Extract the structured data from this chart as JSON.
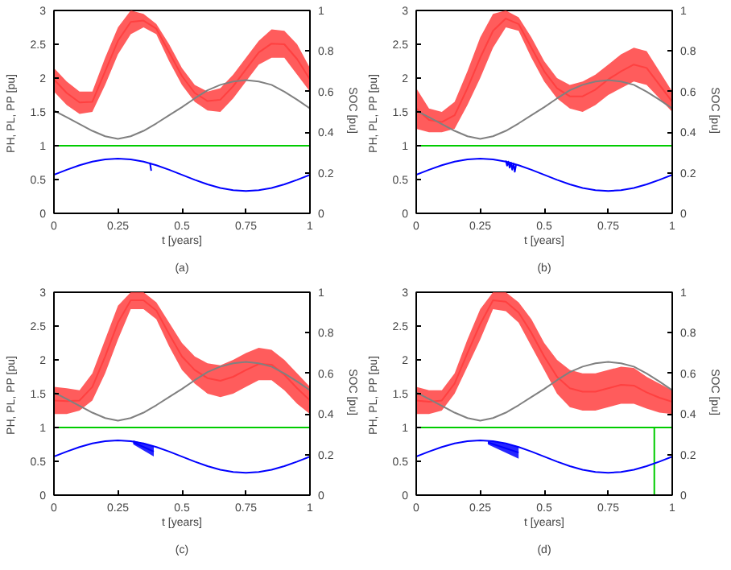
{
  "chart_data": [
    {
      "type": "line",
      "xlabel": "t [years]",
      "ylabel": "PH, PL, PP  [pu]",
      "y2label": "SOC  [pu]",
      "annotations": [
        "(a)"
      ],
      "xlim": [
        0,
        1
      ],
      "xticks": [
        0,
        0.25,
        0.5,
        0.75,
        1
      ],
      "ylim": [
        0,
        3
      ],
      "yticks": [
        0,
        0.5,
        1,
        1.5,
        2,
        2.5,
        3
      ],
      "y2lim": [
        0,
        1
      ],
      "y2ticks": [
        0,
        0.2,
        0.4,
        0.6,
        0.8,
        1
      ],
      "grid": false,
      "x": [
        0,
        0.05,
        0.1,
        0.15,
        0.2,
        0.25,
        0.3,
        0.35,
        0.4,
        0.45,
        0.5,
        0.55,
        0.6,
        0.65,
        0.7,
        0.75,
        0.8,
        0.85,
        0.9,
        0.95,
        1
      ],
      "series": [
        {
          "color": "#ff4040",
          "values": [
            1.98,
            1.78,
            1.64,
            1.65,
            2.1,
            2.55,
            2.83,
            2.85,
            2.73,
            2.38,
            2.03,
            1.78,
            1.66,
            1.68,
            1.88,
            2.13,
            2.38,
            2.51,
            2.5,
            2.28,
            1.98
          ],
          "lower": [
            1.8,
            1.6,
            1.47,
            1.5,
            1.9,
            2.35,
            2.65,
            2.75,
            2.65,
            2.25,
            1.9,
            1.65,
            1.52,
            1.5,
            1.7,
            1.95,
            2.2,
            2.3,
            2.3,
            2.05,
            1.8
          ],
          "upper": [
            2.15,
            1.95,
            1.8,
            1.8,
            2.3,
            2.75,
            3.0,
            2.95,
            2.8,
            2.5,
            2.15,
            1.9,
            1.8,
            1.85,
            2.05,
            2.3,
            2.55,
            2.72,
            2.7,
            2.5,
            2.15
          ]
        },
        {
          "color": "#808080",
          "values": [
            1.52,
            1.42,
            1.32,
            1.22,
            1.14,
            1.1,
            1.14,
            1.22,
            1.33,
            1.45,
            1.57,
            1.7,
            1.82,
            1.9,
            1.95,
            1.97,
            1.95,
            1.9,
            1.8,
            1.68,
            1.55
          ]
        },
        {
          "color": "#00cc00",
          "values": [
            1,
            1,
            1,
            1,
            1,
            1,
            1,
            1,
            1,
            1,
            1,
            1,
            1,
            1,
            1,
            1,
            1,
            1,
            1,
            1,
            1
          ]
        },
        {
          "color": "#0000ff",
          "axis": "y2",
          "values": [
            0.19,
            0.215,
            0.237,
            0.255,
            0.266,
            0.27,
            0.266,
            0.255,
            0.237,
            0.215,
            0.19,
            0.165,
            0.143,
            0.125,
            0.114,
            0.11,
            0.114,
            0.125,
            0.143,
            0.165,
            0.19
          ]
        },
        {
          "color": "#0000ff",
          "axis": "y2",
          "x": [
            0.375,
            0.38
          ],
          "values": [
            0.25,
            0.21
          ]
        }
      ]
    },
    {
      "type": "line",
      "xlabel": "t [years]",
      "ylabel": "PH, PL, PP  [pu]",
      "y2label": "SOC  [pu]",
      "annotations": [
        "(b)"
      ],
      "xlim": [
        0,
        1
      ],
      "xticks": [
        0,
        0.25,
        0.5,
        0.75,
        1
      ],
      "ylim": [
        0,
        3
      ],
      "yticks": [
        0,
        0.5,
        1,
        1.5,
        2,
        2.5,
        3
      ],
      "y2lim": [
        0,
        1
      ],
      "y2ticks": [
        0,
        0.2,
        0.4,
        0.6,
        0.8,
        1
      ],
      "grid": false,
      "x": [
        0,
        0.05,
        0.1,
        0.15,
        0.2,
        0.25,
        0.3,
        0.35,
        0.4,
        0.45,
        0.5,
        0.55,
        0.6,
        0.65,
        0.7,
        0.75,
        0.8,
        0.85,
        0.9,
        0.95,
        1
      ],
      "series": [
        {
          "color": "#ff4040",
          "values": [
            1.55,
            1.38,
            1.35,
            1.45,
            1.85,
            2.3,
            2.7,
            2.88,
            2.8,
            2.45,
            2.1,
            1.85,
            1.73,
            1.73,
            1.83,
            1.98,
            2.1,
            2.2,
            2.15,
            1.9,
            1.65
          ],
          "lower": [
            1.25,
            1.2,
            1.2,
            1.25,
            1.6,
            2.0,
            2.45,
            2.75,
            2.7,
            2.3,
            1.95,
            1.7,
            1.55,
            1.5,
            1.6,
            1.75,
            1.85,
            1.95,
            1.9,
            1.7,
            1.5
          ],
          "upper": [
            1.85,
            1.55,
            1.5,
            1.65,
            2.1,
            2.6,
            2.95,
            3.0,
            2.9,
            2.6,
            2.25,
            2.0,
            1.9,
            1.95,
            2.05,
            2.2,
            2.35,
            2.45,
            2.4,
            2.1,
            1.8
          ]
        },
        {
          "color": "#808080",
          "values": [
            1.52,
            1.42,
            1.32,
            1.22,
            1.14,
            1.1,
            1.14,
            1.22,
            1.33,
            1.45,
            1.57,
            1.7,
            1.82,
            1.9,
            1.95,
            1.97,
            1.95,
            1.9,
            1.8,
            1.68,
            1.55
          ]
        },
        {
          "color": "#00cc00",
          "values": [
            1,
            1,
            1,
            1,
            1,
            1,
            1,
            1,
            1,
            1,
            1,
            1,
            1,
            1,
            1,
            1,
            1,
            1,
            1,
            1,
            1
          ]
        },
        {
          "color": "#0000ff",
          "axis": "y2",
          "values": [
            0.19,
            0.215,
            0.237,
            0.255,
            0.266,
            0.27,
            0.266,
            0.255,
            0.237,
            0.215,
            0.19,
            0.165,
            0.143,
            0.125,
            0.114,
            0.11,
            0.114,
            0.125,
            0.143,
            0.165,
            0.19
          ]
        },
        {
          "color": "#0000ff",
          "axis": "y2",
          "x": [
            0.35,
            0.355,
            0.36,
            0.365,
            0.37,
            0.375,
            0.38,
            0.385,
            0.39
          ],
          "values": [
            0.26,
            0.235,
            0.255,
            0.225,
            0.25,
            0.215,
            0.245,
            0.205,
            0.24
          ]
        }
      ]
    },
    {
      "type": "line",
      "xlabel": "t [years]",
      "ylabel": "PH, PL, PP  [pu]",
      "y2label": "SOC  [pu]",
      "annotations": [
        "(c)"
      ],
      "xlim": [
        0,
        1
      ],
      "xticks": [
        0,
        0.25,
        0.5,
        0.75,
        1
      ],
      "ylim": [
        0,
        3
      ],
      "yticks": [
        0,
        0.5,
        1,
        1.5,
        2,
        2.5,
        3
      ],
      "y2lim": [
        0,
        1
      ],
      "y2ticks": [
        0,
        0.2,
        0.4,
        0.6,
        0.8,
        1
      ],
      "grid": false,
      "x": [
        0,
        0.05,
        0.1,
        0.15,
        0.2,
        0.25,
        0.3,
        0.35,
        0.4,
        0.45,
        0.5,
        0.55,
        0.6,
        0.65,
        0.7,
        0.75,
        0.8,
        0.85,
        0.9,
        0.95,
        1
      ],
      "series": [
        {
          "color": "#ff4040",
          "values": [
            1.4,
            1.39,
            1.4,
            1.6,
            2.05,
            2.55,
            2.88,
            2.88,
            2.73,
            2.38,
            2.05,
            1.85,
            1.73,
            1.69,
            1.75,
            1.85,
            1.94,
            1.93,
            1.78,
            1.58,
            1.4
          ],
          "lower": [
            1.2,
            1.2,
            1.25,
            1.4,
            1.8,
            2.3,
            2.75,
            2.75,
            2.6,
            2.2,
            1.85,
            1.65,
            1.5,
            1.45,
            1.5,
            1.6,
            1.7,
            1.7,
            1.55,
            1.35,
            1.2
          ],
          "upper": [
            1.6,
            1.58,
            1.55,
            1.8,
            2.3,
            2.8,
            3.0,
            3.0,
            2.85,
            2.55,
            2.25,
            2.05,
            1.95,
            1.92,
            2.0,
            2.1,
            2.18,
            2.15,
            2.0,
            1.8,
            1.6
          ]
        },
        {
          "color": "#808080",
          "values": [
            1.52,
            1.42,
            1.32,
            1.22,
            1.14,
            1.1,
            1.14,
            1.22,
            1.33,
            1.45,
            1.57,
            1.7,
            1.82,
            1.9,
            1.95,
            1.97,
            1.95,
            1.9,
            1.8,
            1.68,
            1.55
          ]
        },
        {
          "color": "#00cc00",
          "values": [
            1,
            1,
            1,
            1,
            1,
            1,
            1,
            1,
            1,
            1,
            1,
            1,
            1,
            1,
            1,
            1,
            1,
            1,
            1,
            1,
            1
          ]
        },
        {
          "color": "#0000ff",
          "axis": "y2",
          "values": [
            0.19,
            0.215,
            0.237,
            0.255,
            0.266,
            0.27,
            0.266,
            0.255,
            0.237,
            0.215,
            0.19,
            0.165,
            0.143,
            0.125,
            0.114,
            0.11,
            0.114,
            0.125,
            0.143,
            0.165,
            0.19
          ]
        },
        {
          "color": "#0000ff",
          "axis": "y2",
          "x": [
            0.31,
            0.39
          ],
          "values": [
            0.26,
            0.215
          ],
          "lower": [
            0.25,
            0.19
          ],
          "upper": [
            0.27,
            0.24
          ]
        }
      ]
    },
    {
      "type": "line",
      "xlabel": "t [years]",
      "ylabel": "PH, PL, PP  [pu]",
      "y2label": "SOC  [pu]",
      "annotations": [
        "(d)"
      ],
      "xlim": [
        0,
        1
      ],
      "xticks": [
        0,
        0.25,
        0.5,
        0.75,
        1
      ],
      "ylim": [
        0,
        3
      ],
      "yticks": [
        0,
        0.5,
        1,
        1.5,
        2,
        2.5,
        3
      ],
      "y2lim": [
        0,
        1
      ],
      "y2ticks": [
        0,
        0.2,
        0.4,
        0.6,
        0.8,
        1
      ],
      "grid": false,
      "x": [
        0,
        0.05,
        0.1,
        0.15,
        0.2,
        0.25,
        0.3,
        0.35,
        0.4,
        0.45,
        0.5,
        0.55,
        0.6,
        0.65,
        0.7,
        0.75,
        0.8,
        0.85,
        0.9,
        0.95,
        1
      ],
      "series": [
        {
          "color": "#ff4040",
          "values": [
            1.4,
            1.38,
            1.4,
            1.65,
            2.1,
            2.53,
            2.88,
            2.86,
            2.7,
            2.4,
            2.05,
            1.75,
            1.58,
            1.53,
            1.53,
            1.58,
            1.63,
            1.62,
            1.52,
            1.44,
            1.38
          ],
          "lower": [
            1.2,
            1.2,
            1.25,
            1.5,
            1.9,
            2.3,
            2.75,
            2.72,
            2.55,
            2.2,
            1.85,
            1.5,
            1.3,
            1.25,
            1.25,
            1.3,
            1.35,
            1.35,
            1.28,
            1.22,
            1.2
          ],
          "upper": [
            1.6,
            1.55,
            1.55,
            1.8,
            2.3,
            2.75,
            3.0,
            3.0,
            2.85,
            2.6,
            2.25,
            2.0,
            1.85,
            1.8,
            1.8,
            1.85,
            1.9,
            1.88,
            1.75,
            1.65,
            1.55
          ]
        },
        {
          "color": "#808080",
          "values": [
            1.52,
            1.42,
            1.32,
            1.22,
            1.14,
            1.1,
            1.14,
            1.22,
            1.33,
            1.45,
            1.57,
            1.7,
            1.82,
            1.9,
            1.95,
            1.97,
            1.95,
            1.9,
            1.8,
            1.68,
            1.55
          ]
        },
        {
          "color": "#00cc00",
          "x": [
            0,
            0.93,
            0.93,
            0.93,
            1
          ],
          "values": [
            1,
            1,
            0,
            1,
            1
          ]
        },
        {
          "color": "#0000ff",
          "axis": "y2",
          "values": [
            0.19,
            0.215,
            0.237,
            0.255,
            0.266,
            0.27,
            0.266,
            0.255,
            0.237,
            0.215,
            0.19,
            0.165,
            0.143,
            0.125,
            0.114,
            0.11,
            0.114,
            0.125,
            0.143,
            0.165,
            0.19
          ]
        },
        {
          "color": "#0000ff",
          "axis": "y2",
          "x": [
            0.28,
            0.4
          ],
          "values": [
            0.26,
            0.21
          ],
          "lower": [
            0.25,
            0.18
          ],
          "upper": [
            0.27,
            0.24
          ]
        }
      ]
    }
  ]
}
